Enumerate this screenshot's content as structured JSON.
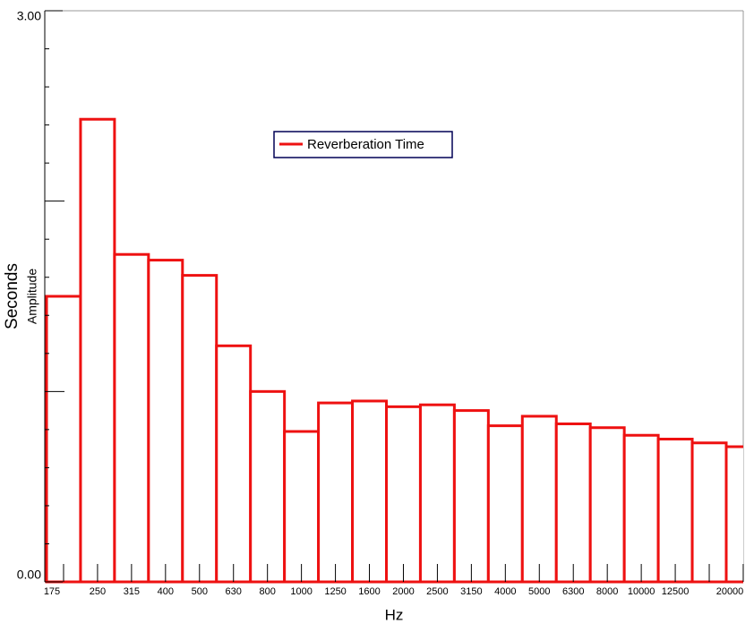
{
  "chart_data": {
    "type": "bar",
    "series": [
      {
        "name": "Reverberation Time",
        "color": "#ee1111",
        "values": [
          1.5,
          2.43,
          1.72,
          1.69,
          1.61,
          1.24,
          1.0,
          0.79,
          0.94,
          0.95,
          0.92,
          0.93,
          0.9,
          0.82,
          0.87,
          0.83,
          0.81,
          0.77,
          0.75,
          0.73,
          0.71
        ]
      }
    ],
    "categories": [
      "175",
      "250",
      "315",
      "400",
      "500",
      "630",
      "800",
      "1000",
      "1250",
      "1600",
      "2000",
      "2500",
      "3150",
      "4000",
      "5000",
      "6300",
      "8000",
      "10000",
      "12500",
      null,
      "20000"
    ],
    "ylim": [
      0,
      3
    ],
    "yticks": [
      {
        "value": 0,
        "label": "0.00"
      },
      {
        "value": 3,
        "label": "3.00"
      }
    ],
    "minor_yticks": [
      0.2,
      0.4,
      0.6,
      0.8,
      1.0,
      1.2,
      1.4,
      1.6,
      1.8,
      2.0,
      2.2,
      2.4,
      2.6,
      2.8
    ],
    "ylabel": "Seconds",
    "ylabel2": "Amplitude",
    "xlabel": "Hz"
  }
}
